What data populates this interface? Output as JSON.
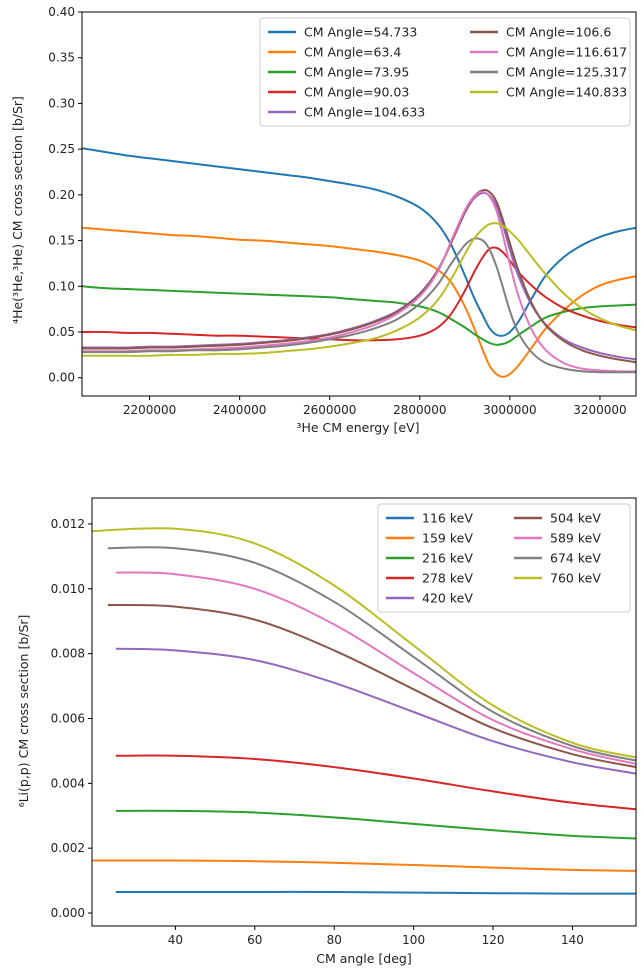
{
  "chart_data": [
    {
      "type": "line",
      "title": "",
      "xlabel": "³He CM energy [eV]",
      "ylabel": "⁴He(³He,³He) CM cross section [b/Sr]",
      "xlim": [
        2050000,
        3280000
      ],
      "ylim": [
        -0.02,
        0.4
      ],
      "xticks": [
        2200000,
        2400000,
        2600000,
        2800000,
        3000000,
        3200000
      ],
      "xtick_labels": [
        "2200000",
        "2400000",
        "2600000",
        "2800000",
        "3000000",
        "3200000"
      ],
      "yticks": [
        0.0,
        0.05,
        0.1,
        0.15,
        0.2,
        0.25,
        0.3,
        0.35,
        0.4
      ],
      "ytick_labels": [
        "0.00",
        "0.05",
        "0.10",
        "0.15",
        "0.20",
        "0.25",
        "0.30",
        "0.35",
        "0.40"
      ],
      "legend": {
        "position": "top-right",
        "columns": 2
      },
      "x": [
        2050000,
        2100000,
        2150000,
        2200000,
        2250000,
        2300000,
        2350000,
        2400000,
        2450000,
        2500000,
        2550000,
        2600000,
        2650000,
        2700000,
        2750000,
        2800000,
        2840000,
        2870000,
        2900000,
        2920000,
        2940000,
        2955000,
        2970000,
        2985000,
        3000000,
        3020000,
        3050000,
        3080000,
        3120000,
        3160000,
        3200000,
        3240000,
        3280000
      ],
      "series": [
        {
          "name": "CM Angle=54.733",
          "color": "#1f77b4",
          "values": [
            0.251,
            0.247,
            0.243,
            0.24,
            0.237,
            0.234,
            0.231,
            0.228,
            0.225,
            0.222,
            0.219,
            0.215,
            0.211,
            0.206,
            0.198,
            0.186,
            0.168,
            0.145,
            0.112,
            0.088,
            0.068,
            0.054,
            0.047,
            0.046,
            0.05,
            0.062,
            0.088,
            0.112,
            0.132,
            0.145,
            0.154,
            0.16,
            0.164
          ]
        },
        {
          "name": "CM Angle=63.4",
          "color": "#ff7f0e",
          "values": [
            0.164,
            0.162,
            0.16,
            0.158,
            0.156,
            0.155,
            0.153,
            0.151,
            0.15,
            0.148,
            0.146,
            0.144,
            0.141,
            0.138,
            0.134,
            0.128,
            0.118,
            0.104,
            0.078,
            0.055,
            0.03,
            0.013,
            0.004,
            0.001,
            0.004,
            0.014,
            0.034,
            0.054,
            0.074,
            0.09,
            0.101,
            0.107,
            0.111
          ]
        },
        {
          "name": "CM Angle=73.95",
          "color": "#2ca02c",
          "values": [
            0.1,
            0.098,
            0.097,
            0.096,
            0.095,
            0.094,
            0.093,
            0.092,
            0.091,
            0.09,
            0.089,
            0.088,
            0.086,
            0.084,
            0.082,
            0.078,
            0.072,
            0.064,
            0.055,
            0.048,
            0.042,
            0.038,
            0.036,
            0.037,
            0.04,
            0.047,
            0.057,
            0.066,
            0.072,
            0.076,
            0.078,
            0.079,
            0.08
          ]
        },
        {
          "name": "CM Angle=90.03",
          "color": "#d62728",
          "values": [
            0.05,
            0.05,
            0.049,
            0.049,
            0.048,
            0.047,
            0.046,
            0.046,
            0.045,
            0.044,
            0.043,
            0.042,
            0.041,
            0.041,
            0.042,
            0.046,
            0.055,
            0.07,
            0.095,
            0.115,
            0.132,
            0.141,
            0.142,
            0.137,
            0.128,
            0.115,
            0.1,
            0.088,
            0.076,
            0.068,
            0.062,
            0.058,
            0.055
          ]
        },
        {
          "name": "CM Angle=104.633",
          "color": "#9467bd",
          "values": [
            0.033,
            0.033,
            0.033,
            0.034,
            0.034,
            0.035,
            0.036,
            0.037,
            0.039,
            0.041,
            0.044,
            0.048,
            0.054,
            0.062,
            0.073,
            0.092,
            0.118,
            0.148,
            0.18,
            0.196,
            0.202,
            0.199,
            0.188,
            0.166,
            0.14,
            0.11,
            0.078,
            0.058,
            0.042,
            0.033,
            0.027,
            0.023,
            0.02
          ]
        },
        {
          "name": "CM Angle=106.6",
          "color": "#8c564b",
          "values": [
            0.032,
            0.032,
            0.032,
            0.033,
            0.033,
            0.034,
            0.035,
            0.036,
            0.038,
            0.04,
            0.043,
            0.047,
            0.053,
            0.061,
            0.072,
            0.091,
            0.117,
            0.148,
            0.181,
            0.198,
            0.205,
            0.203,
            0.193,
            0.172,
            0.147,
            0.116,
            0.08,
            0.057,
            0.04,
            0.03,
            0.024,
            0.02,
            0.017
          ]
        },
        {
          "name": "CM Angle=116.617",
          "color": "#e377c2",
          "values": [
            0.029,
            0.029,
            0.029,
            0.03,
            0.03,
            0.031,
            0.032,
            0.033,
            0.035,
            0.037,
            0.04,
            0.044,
            0.05,
            0.058,
            0.07,
            0.089,
            0.116,
            0.15,
            0.183,
            0.198,
            0.203,
            0.198,
            0.183,
            0.155,
            0.124,
            0.088,
            0.051,
            0.03,
            0.016,
            0.01,
            0.008,
            0.007,
            0.007
          ]
        },
        {
          "name": "CM Angle=125.317",
          "color": "#7f7f7f",
          "values": [
            0.028,
            0.028,
            0.028,
            0.029,
            0.029,
            0.03,
            0.03,
            0.031,
            0.033,
            0.035,
            0.038,
            0.042,
            0.047,
            0.054,
            0.064,
            0.081,
            0.102,
            0.125,
            0.145,
            0.152,
            0.15,
            0.14,
            0.122,
            0.098,
            0.073,
            0.048,
            0.027,
            0.016,
            0.01,
            0.007,
            0.006,
            0.006,
            0.006
          ]
        },
        {
          "name": "CM Angle=140.833",
          "color": "#bcbd22",
          "values": [
            0.024,
            0.024,
            0.024,
            0.024,
            0.025,
            0.025,
            0.026,
            0.026,
            0.027,
            0.029,
            0.031,
            0.034,
            0.038,
            0.043,
            0.052,
            0.066,
            0.085,
            0.108,
            0.135,
            0.152,
            0.163,
            0.168,
            0.169,
            0.166,
            0.16,
            0.15,
            0.131,
            0.113,
            0.092,
            0.076,
            0.065,
            0.057,
            0.052
          ]
        }
      ]
    },
    {
      "type": "line",
      "title": "",
      "xlabel": "CM angle [deg]",
      "ylabel": "⁶Li(p,p) CM cross section [b/Sr]",
      "xlim": [
        19,
        156
      ],
      "ylim": [
        -0.0004,
        0.0128
      ],
      "xticks": [
        40,
        60,
        80,
        100,
        120,
        140
      ],
      "xtick_labels": [
        "40",
        "60",
        "80",
        "100",
        "120",
        "140"
      ],
      "yticks": [
        0.0,
        0.002,
        0.004,
        0.006,
        0.008,
        0.01,
        0.012
      ],
      "ytick_labels": [
        "0.000",
        "0.002",
        "0.004",
        "0.006",
        "0.008",
        "0.010",
        "0.012"
      ],
      "legend": {
        "position": "top-right",
        "columns": 2
      },
      "series": [
        {
          "name": "116 keV",
          "color": "#1f77b4",
          "x": [
            25,
            50,
            80,
            110,
            140,
            156
          ],
          "values": [
            0.00065,
            0.00065,
            0.00065,
            0.00062,
            0.0006,
            0.0006
          ]
        },
        {
          "name": "159 keV",
          "color": "#ff7f0e",
          "x": [
            19,
            40,
            60,
            80,
            100,
            120,
            140,
            156
          ],
          "values": [
            0.00162,
            0.00162,
            0.0016,
            0.00155,
            0.00148,
            0.0014,
            0.00133,
            0.0013
          ]
        },
        {
          "name": "216 keV",
          "color": "#2ca02c",
          "x": [
            25,
            40,
            60,
            80,
            100,
            120,
            140,
            156
          ],
          "values": [
            0.00315,
            0.00315,
            0.0031,
            0.00295,
            0.00275,
            0.00255,
            0.00238,
            0.0023
          ]
        },
        {
          "name": "278 keV",
          "color": "#d62728",
          "x": [
            25,
            40,
            60,
            80,
            100,
            120,
            140,
            156
          ],
          "values": [
            0.00485,
            0.00485,
            0.00475,
            0.0045,
            0.00415,
            0.00375,
            0.0034,
            0.0032
          ]
        },
        {
          "name": "420 keV",
          "color": "#9467bd",
          "x": [
            25,
            40,
            60,
            80,
            100,
            120,
            140,
            156
          ],
          "values": [
            0.00815,
            0.0081,
            0.0078,
            0.0071,
            0.0062,
            0.0053,
            0.00465,
            0.0043
          ]
        },
        {
          "name": "504 keV",
          "color": "#8c564b",
          "x": [
            23,
            40,
            60,
            80,
            100,
            120,
            140,
            156
          ],
          "values": [
            0.0095,
            0.00945,
            0.00905,
            0.0081,
            0.0069,
            0.0057,
            0.0049,
            0.0045
          ]
        },
        {
          "name": "589 keV",
          "color": "#e377c2",
          "x": [
            25,
            40,
            60,
            80,
            100,
            120,
            140,
            156
          ],
          "values": [
            0.0105,
            0.01045,
            0.01,
            0.0089,
            0.0074,
            0.00595,
            0.00505,
            0.0046
          ]
        },
        {
          "name": "674 keV",
          "color": "#7f7f7f",
          "x": [
            23,
            40,
            60,
            80,
            100,
            120,
            140,
            156
          ],
          "values": [
            0.01125,
            0.01125,
            0.0108,
            0.0096,
            0.0079,
            0.0062,
            0.00515,
            0.0047
          ]
        },
        {
          "name": "760 keV",
          "color": "#bcbd22",
          "x": [
            19,
            40,
            60,
            80,
            100,
            120,
            140,
            156
          ],
          "values": [
            0.01178,
            0.01185,
            0.0114,
            0.0101,
            0.00825,
            0.0064,
            0.00525,
            0.0048
          ]
        }
      ]
    }
  ]
}
